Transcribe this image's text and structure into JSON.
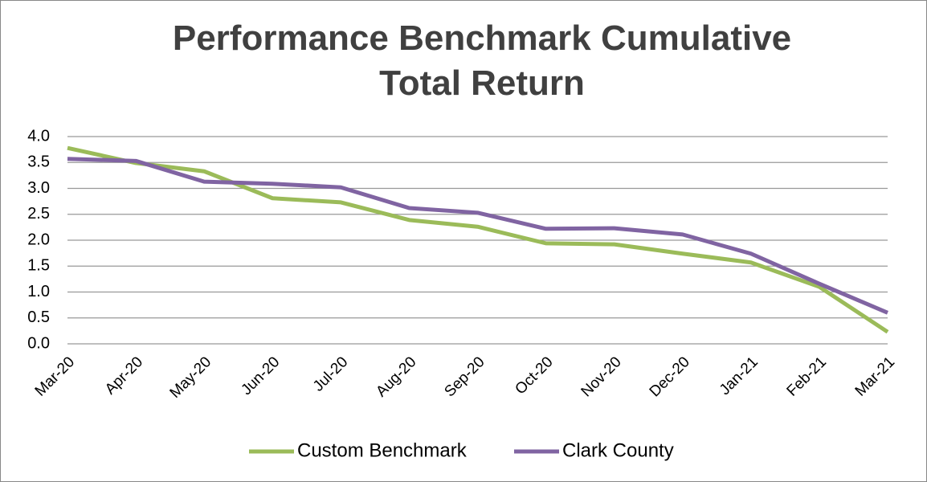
{
  "chart_data": {
    "type": "line",
    "title": "Performance Benchmark Cumulative Total Return",
    "categories": [
      "Mar-20",
      "Apr-20",
      "May-20",
      "Jun-20",
      "Jul-20",
      "Aug-20",
      "Sep-20",
      "Oct-20",
      "Nov-20",
      "Dec-20",
      "Jan-21",
      "Feb-21",
      "Mar-21"
    ],
    "series": [
      {
        "name": "Custom Benchmark",
        "color": "#9bbb59",
        "values": [
          3.78,
          3.49,
          3.33,
          2.81,
          2.73,
          2.39,
          2.26,
          1.94,
          1.92,
          1.74,
          1.57,
          1.1,
          0.23
        ]
      },
      {
        "name": "Clark County",
        "color": "#8064a2",
        "values": [
          3.57,
          3.53,
          3.13,
          3.09,
          3.02,
          2.62,
          2.53,
          2.22,
          2.23,
          2.11,
          1.74,
          1.16,
          0.6
        ]
      }
    ],
    "ylim": [
      0,
      4
    ],
    "yticks": [
      {
        "value": 0,
        "label": "0.0"
      },
      0.5,
      {
        "value": 1,
        "label": "1.0"
      },
      1.5,
      {
        "value": 2,
        "label": "2.0"
      },
      2.5,
      {
        "value": 3,
        "label": "3.0"
      },
      3.5,
      {
        "value": 4,
        "label": "4.0"
      }
    ],
    "grid": true,
    "legend": "bottom"
  }
}
